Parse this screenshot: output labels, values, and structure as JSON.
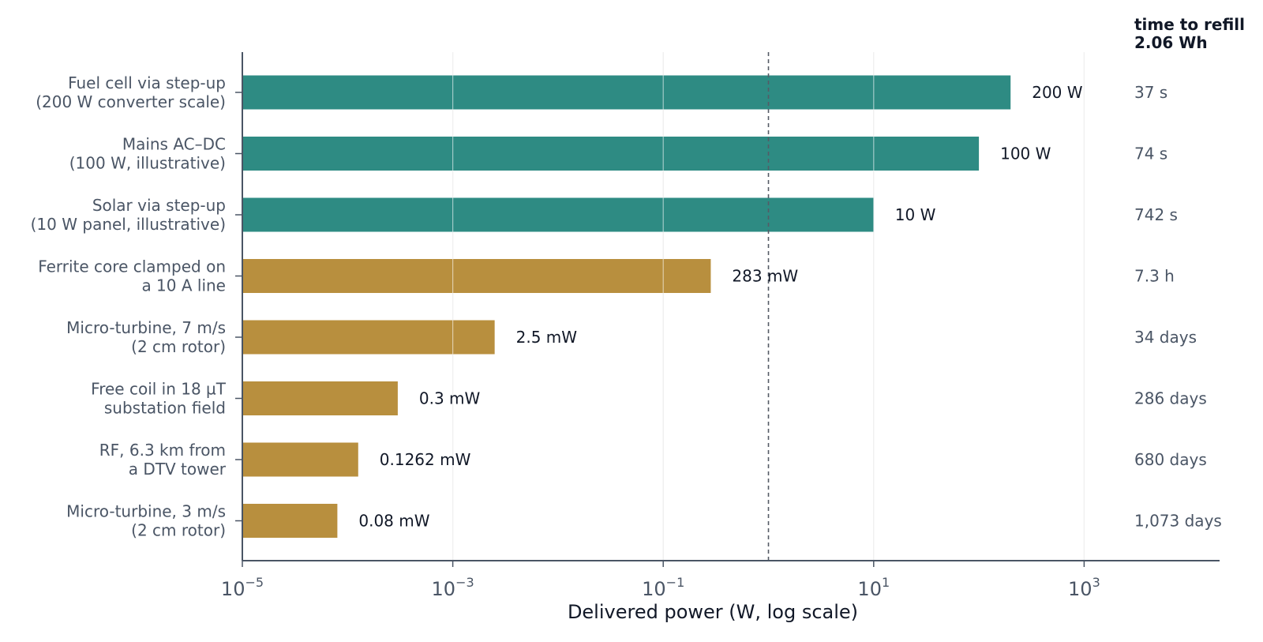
{
  "chart_data": {
    "type": "bar",
    "orientation": "horizontal",
    "title": "",
    "xlabel": "Delivered power (W, log scale)",
    "ylabel": "",
    "x_scale": "log",
    "xlim": [
      1e-05,
      20000
    ],
    "x_ticks": [
      {
        "base": "10",
        "exp": "−5"
      },
      {
        "base": "10",
        "exp": "−3"
      },
      {
        "base": "10",
        "exp": "−1"
      },
      {
        "base": "10",
        "exp": "1"
      },
      {
        "base": "10",
        "exp": "3"
      }
    ],
    "x_tick_values": [
      1e-05,
      0.001,
      0.1,
      10,
      1000
    ],
    "grid": "vertical",
    "reference_line": {
      "x": 1,
      "style": "dashed"
    },
    "time_column_header": [
      "time to refill",
      "2.06 Wh"
    ],
    "colors": {
      "conventional": "#2e8b83",
      "harvester": "#b88f3e"
    },
    "bars": [
      {
        "label": [
          "Fuel cell via step-up",
          "(200 W converter scale)"
        ],
        "value": 200,
        "value_label": "200 W",
        "time": "37 s",
        "group": "conventional"
      },
      {
        "label": [
          "Mains AC–DC",
          "(100 W, illustrative)"
        ],
        "value": 100,
        "value_label": "100 W",
        "time": "74 s",
        "group": "conventional"
      },
      {
        "label": [
          "Solar via step-up",
          "(10 W panel, illustrative)"
        ],
        "value": 10,
        "value_label": "10 W",
        "time": "742 s",
        "group": "conventional"
      },
      {
        "label": [
          "Ferrite core clamped on",
          "a 10 A line"
        ],
        "value": 0.283,
        "value_label": "283 mW",
        "time": "7.3 h",
        "group": "harvester"
      },
      {
        "label": [
          "Micro-turbine, 7 m/s",
          "(2 cm rotor)"
        ],
        "value": 0.0025,
        "value_label": "2.5 mW",
        "time": "34 days",
        "group": "harvester"
      },
      {
        "label": [
          "Free coil in 18 µT",
          "substation field"
        ],
        "value": 0.0003,
        "value_label": "0.3 mW",
        "time": "286 days",
        "group": "harvester"
      },
      {
        "label": [
          "RF, 6.3 km from",
          "a DTV tower"
        ],
        "value": 0.0001262,
        "value_label": "0.1262 mW",
        "time": "680 days",
        "group": "harvester"
      },
      {
        "label": [
          "Micro-turbine, 3 m/s",
          "(2 cm rotor)"
        ],
        "value": 8e-05,
        "value_label": "0.08 mW",
        "time": "1,073 days",
        "group": "harvester"
      }
    ]
  }
}
